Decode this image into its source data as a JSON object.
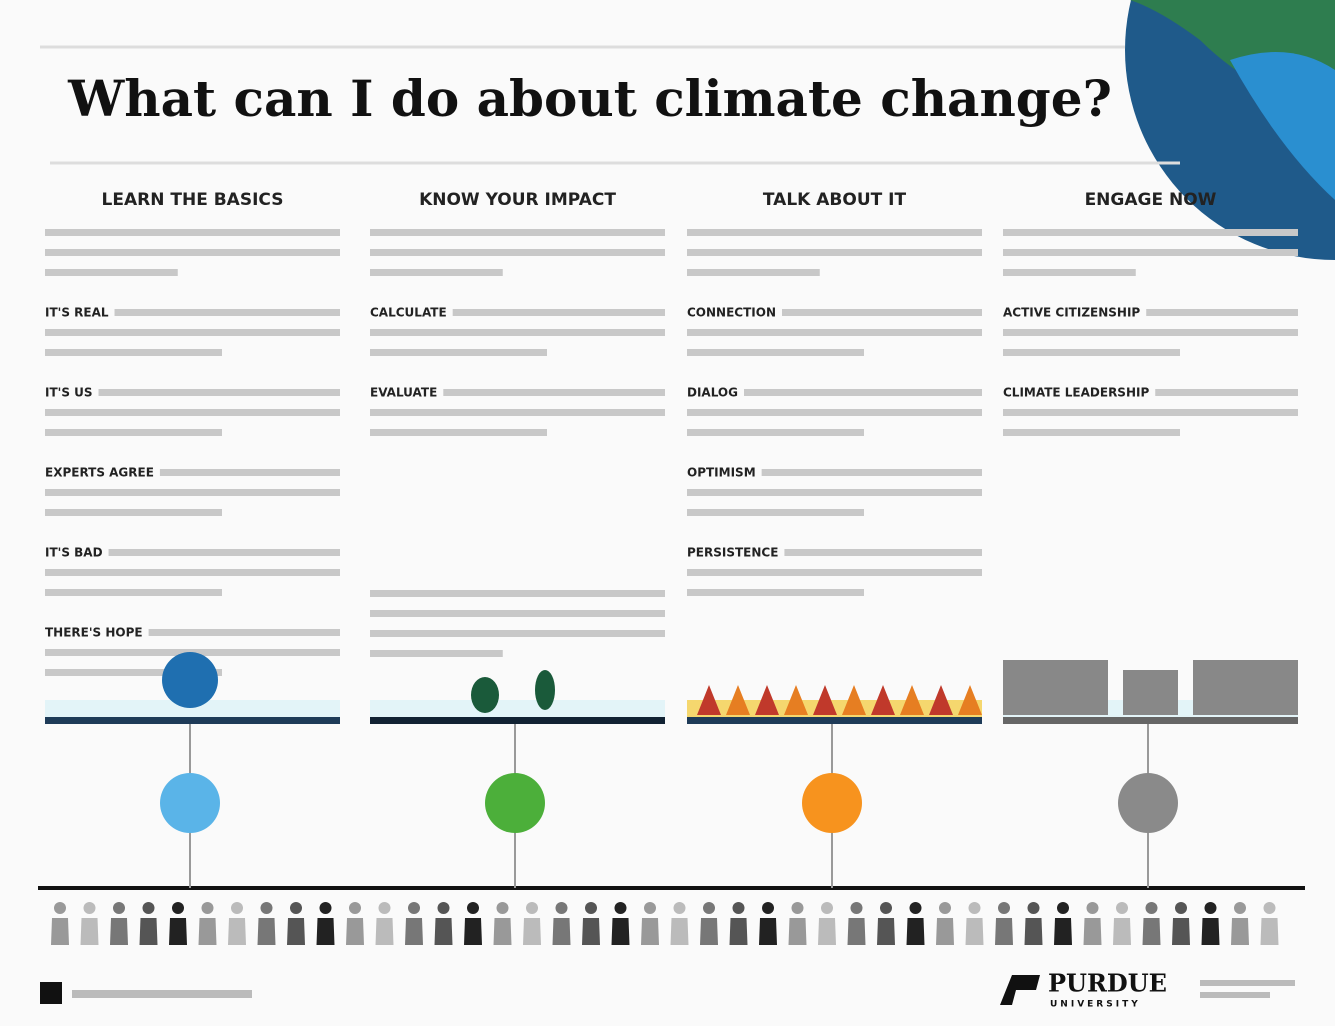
{
  "title": "What can I do about climate change?",
  "columns": [
    {
      "heading": "LEARN THE BASICS",
      "color": "#5ab4e8",
      "items": [
        "IT'S REAL",
        "IT'S US",
        "EXPERTS AGREE",
        "IT'S BAD",
        "THERE'S HOPE"
      ]
    },
    {
      "heading": "KNOW YOUR IMPACT",
      "color": "#4caf3a",
      "items": [
        "CALCULATE",
        "EVALUATE"
      ]
    },
    {
      "heading": "TALK ABOUT IT",
      "color": "#f7931e",
      "items": [
        "CONNECTION",
        "DIALOG",
        "OPTIMISM",
        "PERSISTENCE"
      ]
    },
    {
      "heading": "ENGAGE NOW",
      "color": "#8a8a8a",
      "items": [
        "ACTIVE CITIZENSHIP",
        "CLIMATE LEADERSHIP"
      ]
    }
  ],
  "footer": {
    "logo": "PURDUE",
    "logo_sub": "UNIVERSITY"
  }
}
